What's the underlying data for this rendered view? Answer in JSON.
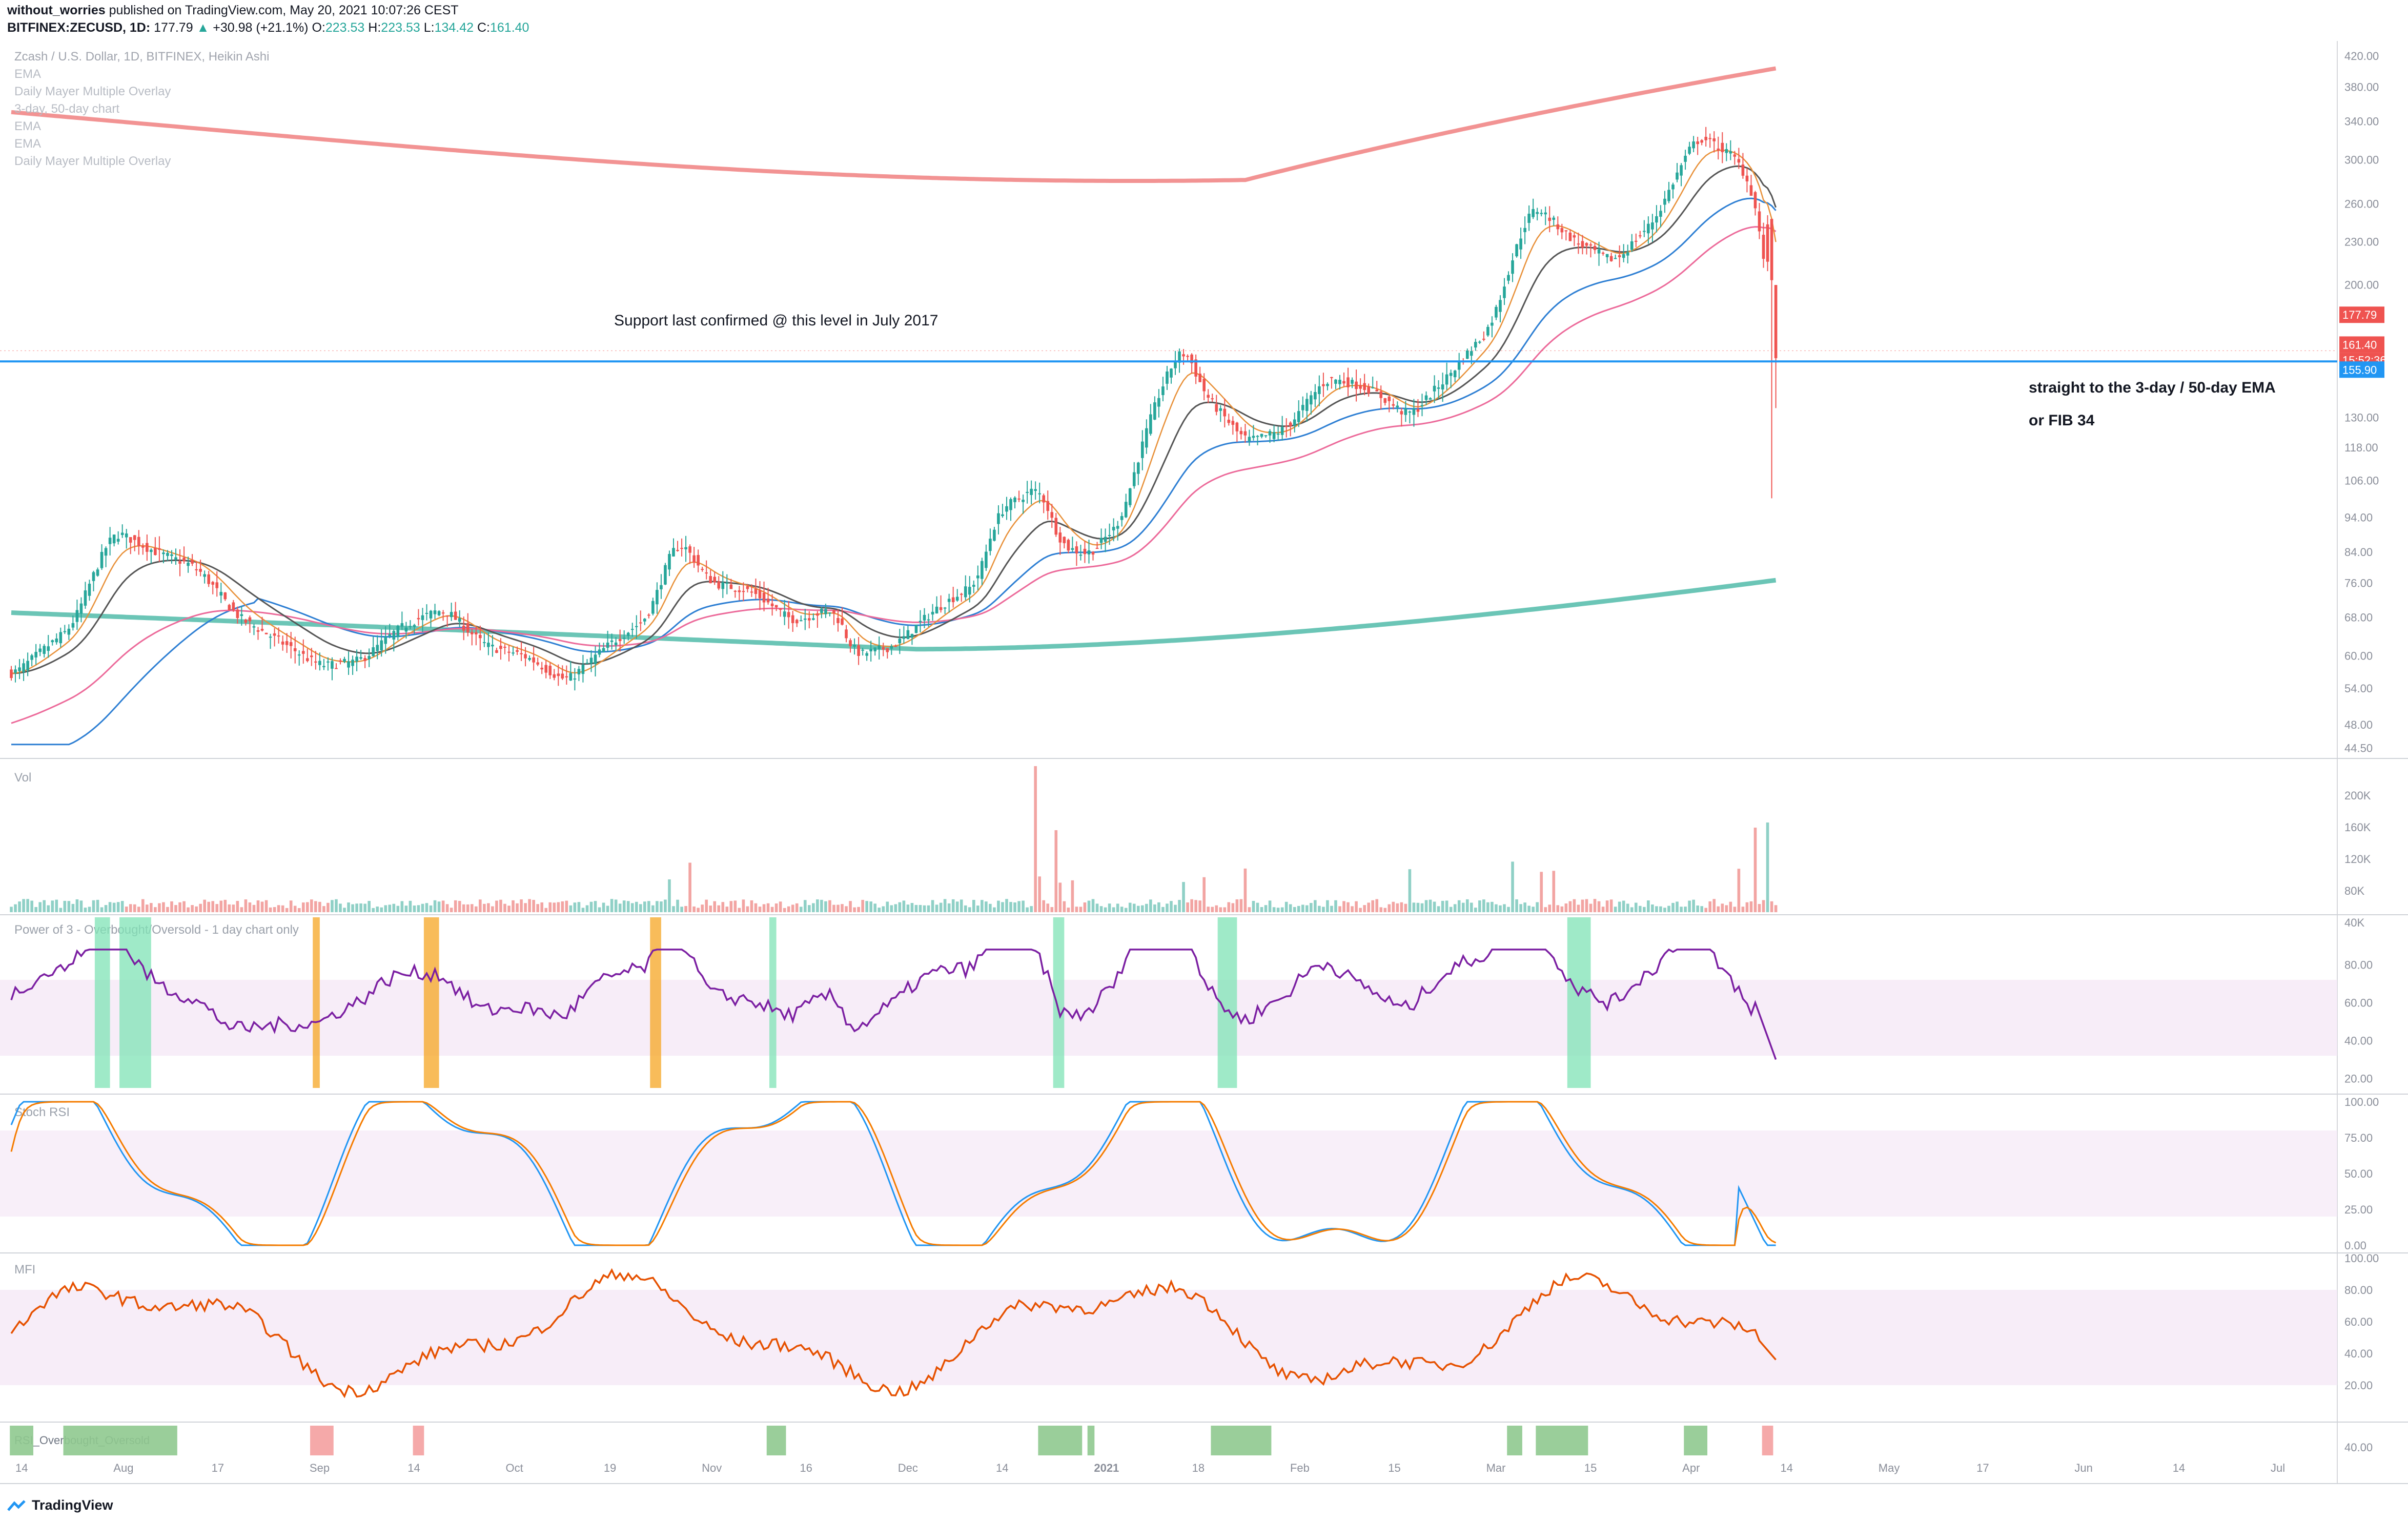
{
  "header": {
    "author": "without_worries",
    "published_text": "published on TradingView.com, May 20, 2021 10:07:26 CEST",
    "symbol": "BITFINEX:ZECUSD, 1D",
    "last": "177.79",
    "change": "+30.98 (+21.1%)",
    "o": "223.53",
    "h": "223.53",
    "l": "134.42",
    "c": "161.40"
  },
  "legend_lines": [
    "Zcash / U.S. Dollar, 1D, BITFINEX, Heikin Ashi",
    "EMA",
    "Daily Mayer Multiple Overlay",
    "3-day, 50-day chart",
    "EMA",
    "EMA",
    "Daily Mayer Multiple Overlay"
  ],
  "annotations": {
    "support": "Support last confirmed @ this level in July 2017",
    "ema_note": "straight to the 3-day / 50-day EMA",
    "fib_note": "or FIB 34"
  },
  "price_tags": {
    "last": "177.79",
    "close": "161.40",
    "countdown": "15:52:36",
    "support": "155.90"
  },
  "pane_labels": {
    "vol": "Vol",
    "power": "Power of 3 - Overbought/Oversold - 1 day chart only",
    "stoch": "Stoch RSI",
    "mfi": "MFI",
    "rsi_obos": "RSI_Overbought_Oversold"
  },
  "brand": "TradingView",
  "colors": {
    "up": "#26a69a",
    "down": "#ef5350",
    "support_line": "#2196f3",
    "mayer_top": "#f08080",
    "ema_long": "#5bbfae",
    "power_line": "#7b1fa2",
    "stoch_k": "#2196f3",
    "stoch_d": "#f57c00",
    "mfi": "#e65100"
  },
  "chart_data": {
    "type": "candlestick",
    "title": "Zcash / U.S. Dollar, 1D, BITFINEX, Heikin Ashi",
    "price_axis": [
      "420.00",
      "380.00",
      "340.00",
      "300.00",
      "260.00",
      "230.00",
      "200.00",
      "177.79",
      "161.40",
      "155.90",
      "130.00",
      "118.00",
      "106.00",
      "94.00",
      "84.00",
      "76.00",
      "68.00",
      "60.00",
      "54.00",
      "48.00",
      "44.50"
    ],
    "price_range": [
      43,
      430
    ],
    "log_scale": true,
    "x_ticks": [
      "14",
      "Aug",
      "17",
      "Sep",
      "14",
      "Oct",
      "19",
      "Nov",
      "16",
      "Dec",
      "14",
      "2021",
      "18",
      "Feb",
      "15",
      "Mar",
      "15",
      "Apr",
      "14",
      "May",
      "17",
      "Jun",
      "14",
      "Jul"
    ],
    "anchors": [
      [
        0,
        56
      ],
      [
        15,
        66
      ],
      [
        25,
        90
      ],
      [
        35,
        84
      ],
      [
        45,
        80
      ],
      [
        55,
        68
      ],
      [
        65,
        63
      ],
      [
        75,
        58
      ],
      [
        85,
        59
      ],
      [
        95,
        66
      ],
      [
        105,
        70
      ],
      [
        115,
        62
      ],
      [
        125,
        60
      ],
      [
        135,
        55
      ],
      [
        145,
        62
      ],
      [
        155,
        68
      ],
      [
        162,
        88
      ],
      [
        170,
        76
      ],
      [
        180,
        74
      ],
      [
        190,
        67
      ],
      [
        200,
        70
      ],
      [
        205,
        60
      ],
      [
        215,
        62
      ],
      [
        225,
        70
      ],
      [
        235,
        76
      ],
      [
        240,
        96
      ],
      [
        250,
        104
      ],
      [
        255,
        86
      ],
      [
        262,
        83
      ],
      [
        270,
        93
      ],
      [
        280,
        145
      ],
      [
        285,
        165
      ],
      [
        290,
        140
      ],
      [
        300,
        120
      ],
      [
        310,
        125
      ],
      [
        320,
        148
      ],
      [
        330,
        143
      ],
      [
        340,
        130
      ],
      [
        350,
        150
      ],
      [
        360,
        175
      ],
      [
        370,
        260
      ],
      [
        380,
        230
      ],
      [
        390,
        215
      ],
      [
        400,
        248
      ],
      [
        410,
        325
      ],
      [
        420,
        300
      ],
      [
        425,
        250
      ],
      [
        428,
        158
      ]
    ],
    "volume_axis": [
      "200K",
      "160K",
      "120K",
      "80K",
      "40K"
    ],
    "power_axis": [
      "80.00",
      "60.00",
      "40.00",
      "20.00"
    ],
    "power_bands": [
      [
        80,
        [
          21,
          24
        ]
      ],
      [
        85,
        [
          27,
          34
        ]
      ],
      [
        40,
        [
          74,
          75
        ]
      ],
      [
        40,
        [
          101,
          104
        ]
      ],
      [
        40,
        [
          156,
          158
        ]
      ],
      [
        80,
        [
          185,
          186
        ]
      ],
      [
        80,
        [
          254,
          256
        ]
      ],
      [
        80,
        [
          294,
          298
        ]
      ],
      [
        80,
        [
          379,
          384
        ]
      ]
    ],
    "stoch_axis": [
      "100.00",
      "75.00",
      "50.00",
      "25.00",
      "0.00"
    ],
    "mfi_axis": [
      "100.00",
      "80.00",
      "60.00",
      "40.00",
      "20.00"
    ],
    "obos_axis": [
      "40.00"
    ],
    "obos_bands": [
      [
        "green",
        [
          0,
          5
        ]
      ],
      [
        "green",
        [
          13,
          40
        ]
      ],
      [
        "red",
        [
          73,
          78
        ]
      ],
      [
        "red",
        [
          98,
          100
        ]
      ],
      [
        "green",
        [
          184,
          188
        ]
      ],
      [
        "green",
        [
          250,
          260
        ]
      ],
      [
        "green",
        [
          262,
          263
        ]
      ],
      [
        "green",
        [
          292,
          306
        ]
      ],
      [
        "green",
        [
          364,
          367
        ]
      ],
      [
        "green",
        [
          371,
          383
        ]
      ],
      [
        "green",
        [
          407,
          412
        ]
      ],
      [
        "red",
        [
          426,
          428
        ]
      ]
    ]
  }
}
